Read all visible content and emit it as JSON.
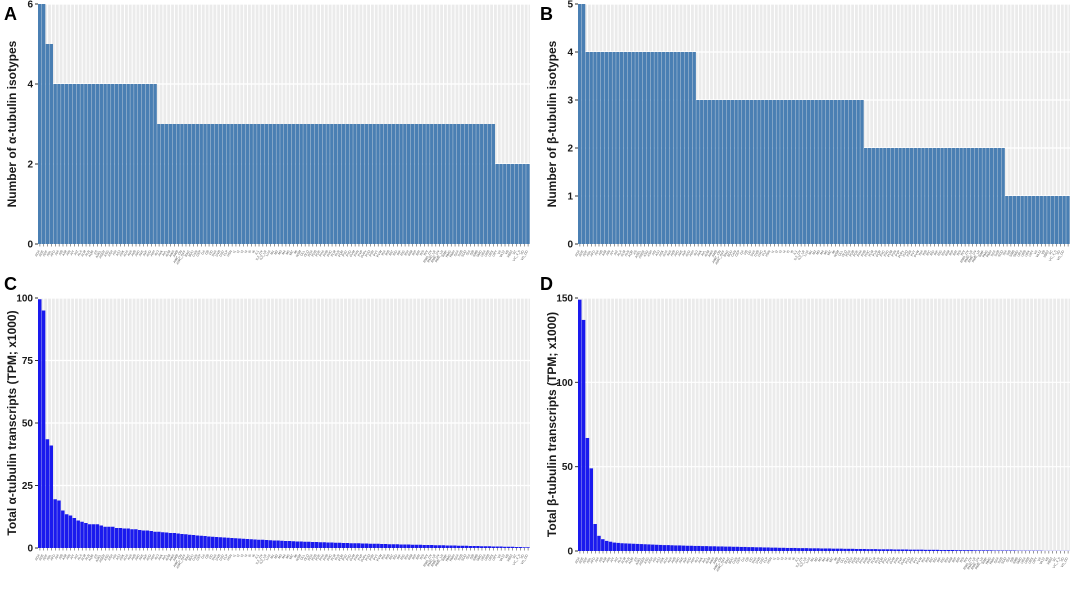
{
  "chart_data": [
    {
      "panel": "A",
      "type": "bar",
      "color": "#4a7fb3",
      "ylabel": "Number of α-tubulin isotypes",
      "ylim": [
        0,
        6
      ],
      "yticks": [
        0,
        2,
        4,
        6
      ],
      "grid": true,
      "n_categories": 128,
      "category_labels": [
        "ADA",
        "ADE",
        "ADF",
        "ADL",
        "AFD",
        "AIA",
        "AIB",
        "AIM",
        "AIN",
        "AIY",
        "AIZ",
        "ALA",
        "ALM",
        "ALN",
        "AQR",
        "AS",
        "ASEL",
        "ASER",
        "ASG",
        "ASH",
        "ASI",
        "ASJ",
        "ASK",
        "AUA",
        "AVA",
        "AVB",
        "AVD",
        "AVE",
        "AVF",
        "AVG",
        "AVH",
        "AVJ",
        "AVK",
        "AVL",
        "AVM",
        "AWA",
        "AWB",
        "AWC_ON",
        "AWC_OFF",
        "BAG",
        "BDU",
        "CAN",
        "CEP",
        "DA",
        "DB",
        "DD",
        "DVA",
        "DVB",
        "DVC",
        "FLP",
        "HSN",
        "I1",
        "I2",
        "I3",
        "I4",
        "I5",
        "I6",
        "IL1",
        "IL2_DV",
        "IL2_LR",
        "LUA",
        "M1",
        "M2",
        "M3",
        "M4",
        "M5",
        "MC",
        "MI",
        "NSM",
        "OLL",
        "OLQ",
        "PDA",
        "PDB",
        "PDE",
        "PHA",
        "PHB",
        "PHC",
        "PLM",
        "PLN",
        "PQR",
        "PVC",
        "PVD",
        "PVM",
        "PVN",
        "PVP",
        "PVPx",
        "PVQ",
        "PVR",
        "PVT",
        "PVW",
        "RIA",
        "RIB",
        "RIC",
        "RID",
        "RIF",
        "RIG",
        "RIH",
        "RIM",
        "RIP",
        "RIR",
        "RIS",
        "RIV",
        "RMD_DV",
        "RMD_LR",
        "RME_DV",
        "RME_LR",
        "RMF",
        "RMG",
        "RMH",
        "SAA",
        "SAB",
        "SDQ",
        "SIA",
        "SIB",
        "SMB",
        "SMD",
        "URA",
        "URB",
        "URX",
        "URY",
        "VA",
        "VA12",
        "VB",
        "VB02",
        "VC",
        "VC_4_5",
        "VD",
        "VD_DD"
      ],
      "values": [
        6,
        6,
        5,
        5,
        4,
        4,
        4,
        4,
        4,
        4,
        4,
        4,
        4,
        4,
        4,
        4,
        4,
        4,
        4,
        4,
        4,
        4,
        4,
        4,
        4,
        4,
        4,
        4,
        4,
        4,
        4,
        3,
        3,
        3,
        3,
        3,
        3,
        3,
        3,
        3,
        3,
        3,
        3,
        3,
        3,
        3,
        3,
        3,
        3,
        3,
        3,
        3,
        3,
        3,
        3,
        3,
        3,
        3,
        3,
        3,
        3,
        3,
        3,
        3,
        3,
        3,
        3,
        3,
        3,
        3,
        3,
        3,
        3,
        3,
        3,
        3,
        3,
        3,
        3,
        3,
        3,
        3,
        3,
        3,
        3,
        3,
        3,
        3,
        3,
        3,
        3,
        3,
        3,
        3,
        3,
        3,
        3,
        3,
        3,
        3,
        3,
        3,
        3,
        3,
        3,
        3,
        3,
        3,
        3,
        3,
        3,
        3,
        3,
        3,
        3,
        3,
        3,
        3,
        3,
        2,
        2,
        2,
        2,
        2,
        2,
        2,
        2,
        2
      ]
    },
    {
      "panel": "B",
      "type": "bar",
      "color": "#4a7fb3",
      "ylabel": "Number of β-tubulin isotypes",
      "ylim": [
        0,
        5
      ],
      "yticks": [
        0,
        1,
        2,
        3,
        4,
        5
      ],
      "grid": true,
      "n_categories": 128,
      "category_labels": [
        "ADA",
        "ADE",
        "ADF",
        "ADL",
        "AFD",
        "AIA",
        "AIB",
        "AIM",
        "AIN",
        "AIY",
        "AIZ",
        "ALA",
        "ALM",
        "ALN",
        "AQR",
        "AS",
        "ASEL",
        "ASER",
        "ASG",
        "ASH",
        "ASI",
        "ASJ",
        "ASK",
        "AUA",
        "AVA",
        "AVB",
        "AVD",
        "AVE",
        "AVF",
        "AVG",
        "AVH",
        "AVJ",
        "AVK",
        "AVL",
        "AVM",
        "AWA",
        "AWB",
        "AWC_ON",
        "AWC_OFF",
        "BAG",
        "BDU",
        "CAN",
        "CEP",
        "DA",
        "DB",
        "DD",
        "DVA",
        "DVB",
        "DVC",
        "FLP",
        "HSN",
        "I1",
        "I2",
        "I3",
        "I4",
        "I5",
        "I6",
        "IL1",
        "IL2_DV",
        "IL2_LR",
        "LUA",
        "M1",
        "M2",
        "M3",
        "M4",
        "M5",
        "MC",
        "MI",
        "NSM",
        "OLL",
        "OLQ",
        "PDA",
        "PDB",
        "PDE",
        "PHA",
        "PHB",
        "PHC",
        "PLM",
        "PLN",
        "PQR",
        "PVC",
        "PVD",
        "PVM",
        "PVN",
        "PVP",
        "PVPx",
        "PVQ",
        "PVR",
        "PVT",
        "PVW",
        "RIA",
        "RIB",
        "RIC",
        "RID",
        "RIF",
        "RIG",
        "RIH",
        "RIM",
        "RIP",
        "RIR",
        "RIS",
        "RIV",
        "RMD_DV",
        "RMD_LR",
        "RME_DV",
        "RME_LR",
        "RMF",
        "RMG",
        "RMH",
        "SAA",
        "SAB",
        "SDQ",
        "SIA",
        "SIB",
        "SMB",
        "SMD",
        "URA",
        "URB",
        "URX",
        "URY",
        "VA",
        "VA12",
        "VB",
        "VB02",
        "VC",
        "VC_4_5",
        "VD",
        "VD_DD"
      ],
      "values": [
        5,
        5,
        4,
        4,
        4,
        4,
        4,
        4,
        4,
        4,
        4,
        4,
        4,
        4,
        4,
        4,
        4,
        4,
        4,
        4,
        4,
        4,
        4,
        4,
        4,
        4,
        4,
        4,
        4,
        4,
        4,
        3,
        3,
        3,
        3,
        3,
        3,
        3,
        3,
        3,
        3,
        3,
        3,
        3,
        3,
        3,
        3,
        3,
        3,
        3,
        3,
        3,
        3,
        3,
        3,
        3,
        3,
        3,
        3,
        3,
        3,
        3,
        3,
        3,
        3,
        3,
        3,
        3,
        3,
        3,
        3,
        3,
        3,
        3,
        3,
        2,
        2,
        2,
        2,
        2,
        2,
        2,
        2,
        2,
        2,
        2,
        2,
        2,
        2,
        2,
        2,
        2,
        2,
        2,
        2,
        2,
        2,
        2,
        2,
        2,
        2,
        2,
        2,
        2,
        2,
        2,
        2,
        2,
        2,
        2,
        2,
        2,
        1,
        1,
        1,
        1,
        1,
        1,
        1,
        1,
        1,
        1,
        1,
        1,
        1,
        1,
        1,
        1,
        1
      ]
    },
    {
      "panel": "C",
      "type": "bar",
      "color": "#1a1aee",
      "ylabel": "Total α-tubulin transcripts (TPM; x1000)",
      "ylim": [
        0,
        100
      ],
      "yticks": [
        0,
        25,
        50,
        75,
        100
      ],
      "grid": true,
      "n_categories": 128,
      "category_labels": [
        "ADA",
        "ADE",
        "ADF",
        "ADL",
        "AFD",
        "AIA",
        "AIB",
        "AIM",
        "AIN",
        "AIY",
        "AIZ",
        "ALA",
        "ALM",
        "ALN",
        "AQR",
        "AS",
        "ASEL",
        "ASER",
        "ASG",
        "ASH",
        "ASI",
        "ASJ",
        "ASK",
        "AUA",
        "AVA",
        "AVB",
        "AVD",
        "AVE",
        "AVF",
        "AVG",
        "AVH",
        "AVJ",
        "AVK",
        "AVL",
        "AVM",
        "AWA",
        "AWB",
        "AWC_ON",
        "AWC_OFF",
        "BAG",
        "BDU",
        "CAN",
        "CEP",
        "DA",
        "DB",
        "DD",
        "DVA",
        "DVB",
        "DVC",
        "FLP",
        "HSN",
        "I1",
        "I2",
        "I3",
        "I4",
        "I5",
        "I6",
        "IL1",
        "IL2_DV",
        "IL2_LR",
        "LUA",
        "M1",
        "M2",
        "M3",
        "M4",
        "M5",
        "MC",
        "MI",
        "NSM",
        "OLL",
        "OLQ",
        "PDA",
        "PDB",
        "PDE",
        "PHA",
        "PHB",
        "PHC",
        "PLM",
        "PLN",
        "PQR",
        "PVC",
        "PVD",
        "PVM",
        "PVN",
        "PVP",
        "PVPx",
        "PVQ",
        "PVR",
        "PVT",
        "PVW",
        "RIA",
        "RIB",
        "RIC",
        "RID",
        "RIF",
        "RIG",
        "RIH",
        "RIM",
        "RIP",
        "RIR",
        "RIS",
        "RIV",
        "RMD_DV",
        "RMD_LR",
        "RME_DV",
        "RME_LR",
        "RMF",
        "RMG",
        "RMH",
        "SAA",
        "SAB",
        "SDQ",
        "SIA",
        "SIB",
        "SMB",
        "SMD",
        "URA",
        "URB",
        "URX",
        "URY",
        "VA",
        "VA12",
        "VB",
        "VB02",
        "VC",
        "VC_4_5",
        "VD",
        "VD_DD"
      ],
      "values": [
        99.5,
        95.0,
        43.5,
        41.0,
        19.5,
        19.0,
        15.0,
        13.5,
        13.0,
        12.0,
        11.0,
        10.5,
        10.0,
        9.5,
        9.5,
        9.5,
        9.0,
        8.5,
        8.5,
        8.5,
        8.0,
        8.0,
        7.8,
        7.8,
        7.5,
        7.5,
        7.2,
        7.0,
        7.0,
        6.8,
        6.5,
        6.5,
        6.3,
        6.2,
        6.0,
        6.0,
        5.8,
        5.6,
        5.5,
        5.3,
        5.2,
        5.0,
        4.9,
        4.8,
        4.6,
        4.5,
        4.4,
        4.3,
        4.2,
        4.1,
        4.0,
        3.9,
        3.8,
        3.7,
        3.6,
        3.5,
        3.4,
        3.3,
        3.3,
        3.2,
        3.1,
        3.0,
        3.0,
        2.9,
        2.8,
        2.8,
        2.7,
        2.6,
        2.6,
        2.5,
        2.5,
        2.4,
        2.4,
        2.3,
        2.3,
        2.2,
        2.2,
        2.1,
        2.1,
        2.0,
        2.0,
        1.9,
        1.9,
        1.9,
        1.8,
        1.8,
        1.7,
        1.7,
        1.7,
        1.6,
        1.6,
        1.5,
        1.5,
        1.5,
        1.4,
        1.4,
        1.4,
        1.3,
        1.3,
        1.3,
        1.2,
        1.2,
        1.2,
        1.1,
        1.1,
        1.1,
        1.0,
        1.0,
        1.0,
        0.9,
        0.9,
        0.9,
        0.8,
        0.8,
        0.8,
        0.7,
        0.7,
        0.7,
        0.6,
        0.6,
        0.6,
        0.5,
        0.5,
        0.5,
        0.4,
        0.4,
        0.3,
        0.3
      ]
    },
    {
      "panel": "D",
      "type": "bar",
      "color": "#1a1aee",
      "ylabel": "Total β-tubulin transcripts (TPM; x1000)",
      "ylim": [
        0,
        150
      ],
      "yticks": [
        0,
        50,
        100,
        150
      ],
      "grid": true,
      "n_categories": 128,
      "category_labels": [
        "ADA",
        "ADE",
        "ADF",
        "ADL",
        "AFD",
        "AIA",
        "AIB",
        "AIM",
        "AIN",
        "AIY",
        "AIZ",
        "ALA",
        "ALM",
        "ALN",
        "AQR",
        "AS",
        "ASEL",
        "ASER",
        "ASG",
        "ASH",
        "ASI",
        "ASJ",
        "ASK",
        "AUA",
        "AVA",
        "AVB",
        "AVD",
        "AVE",
        "AVF",
        "AVG",
        "AVH",
        "AVJ",
        "AVK",
        "AVL",
        "AVM",
        "AWA",
        "AWB",
        "AWC_ON",
        "AWC_OFF",
        "BAG",
        "BDU",
        "CAN",
        "CEP",
        "DA",
        "DB",
        "DD",
        "DVA",
        "DVB",
        "DVC",
        "FLP",
        "HSN",
        "I1",
        "I2",
        "I3",
        "I4",
        "I5",
        "I6",
        "IL1",
        "IL2_DV",
        "IL2_LR",
        "LUA",
        "M1",
        "M2",
        "M3",
        "M4",
        "M5",
        "MC",
        "MI",
        "NSM",
        "OLL",
        "OLQ",
        "PDA",
        "PDB",
        "PDE",
        "PHA",
        "PHB",
        "PHC",
        "PLM",
        "PLN",
        "PQR",
        "PVC",
        "PVD",
        "PVM",
        "PVN",
        "PVP",
        "PVPx",
        "PVQ",
        "PVR",
        "PVT",
        "PVW",
        "RIA",
        "RIB",
        "RIC",
        "RID",
        "RIF",
        "RIG",
        "RIH",
        "RIM",
        "RIP",
        "RIR",
        "RIS",
        "RIV",
        "RMD_DV",
        "RMD_LR",
        "RME_DV",
        "RME_LR",
        "RMF",
        "RMG",
        "RMH",
        "SAA",
        "SAB",
        "SDQ",
        "SIA",
        "SIB",
        "SMB",
        "SMD",
        "URA",
        "URB",
        "URX",
        "URY",
        "VA",
        "VA12",
        "VB",
        "VB02",
        "VC",
        "VC_4_5",
        "VD",
        "VD_DD"
      ],
      "values": [
        149.0,
        137.0,
        67.0,
        49.0,
        16.0,
        9.0,
        7.0,
        6.0,
        5.5,
        5.0,
        4.8,
        4.6,
        4.5,
        4.4,
        4.3,
        4.2,
        4.1,
        4.0,
        3.9,
        3.8,
        3.7,
        3.6,
        3.5,
        3.5,
        3.4,
        3.3,
        3.3,
        3.2,
        3.1,
        3.1,
        3.0,
        3.0,
        2.9,
        2.9,
        2.8,
        2.8,
        2.7,
        2.7,
        2.6,
        2.6,
        2.5,
        2.5,
        2.4,
        2.4,
        2.3,
        2.3,
        2.2,
        2.2,
        2.1,
        2.1,
        2.0,
        2.0,
        1.9,
        1.9,
        1.8,
        1.8,
        1.8,
        1.7,
        1.7,
        1.7,
        1.6,
        1.6,
        1.6,
        1.5,
        1.5,
        1.5,
        1.4,
        1.4,
        1.4,
        1.3,
        1.3,
        1.3,
        1.2,
        1.2,
        1.2,
        1.1,
        1.1,
        1.1,
        1.0,
        1.0,
        1.0,
        1.0,
        0.9,
        0.9,
        0.9,
        0.9,
        0.8,
        0.8,
        0.8,
        0.8,
        0.7,
        0.7,
        0.7,
        0.7,
        0.6,
        0.6,
        0.6,
        0.6,
        0.5,
        0.5,
        0.5,
        0.5,
        0.5,
        0.4,
        0.4,
        0.4,
        0.4,
        0.4,
        0.3,
        0.3,
        0.3,
        0.3,
        0.3,
        0.3,
        0.2,
        0.2,
        0.2,
        0.2,
        0.2,
        0.2,
        0.2,
        0.1,
        0.1,
        0.1,
        0.1,
        0.1,
        0.1,
        0.1
      ]
    }
  ]
}
